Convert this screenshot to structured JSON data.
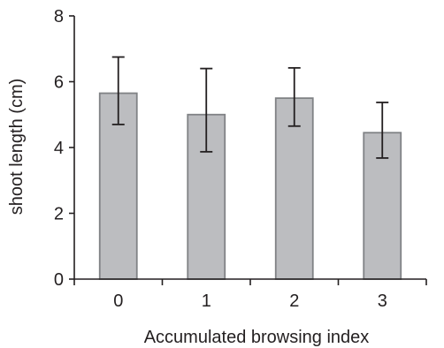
{
  "chart_data": {
    "type": "bar",
    "categories": [
      "0",
      "1",
      "2",
      "3"
    ],
    "values": [
      5.65,
      5.0,
      5.5,
      4.45
    ],
    "error_upper": [
      6.75,
      6.4,
      6.42,
      5.37
    ],
    "error_lower": [
      4.7,
      3.87,
      4.65,
      3.68
    ],
    "xlabel": "Accumulated browsing index",
    "ylabel": "shoot length (cm)",
    "ylim": [
      0,
      8
    ],
    "yticks": [
      "0",
      "2",
      "4",
      "6",
      "8"
    ],
    "grid": false,
    "legend": "none"
  }
}
